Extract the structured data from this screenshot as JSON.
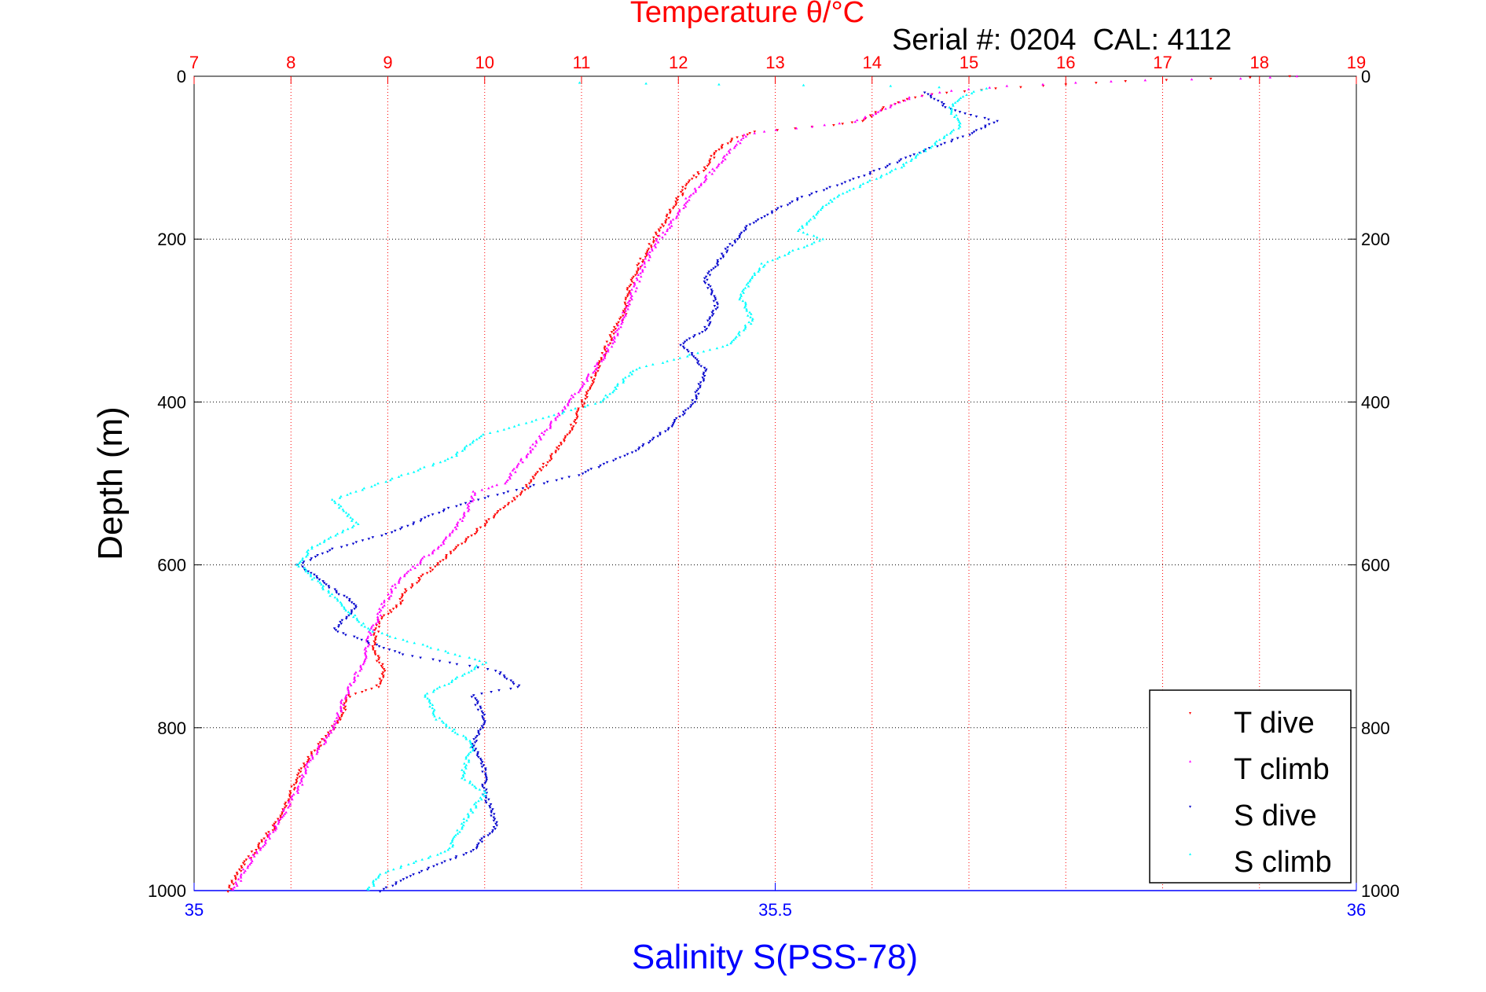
{
  "chart_data": {
    "type": "scatter",
    "title": "Temperature θ/°C",
    "annotation": "Serial #: 0204  CAL: 4112",
    "xlabel": "Salinity S(PSS-78)",
    "ylabel": "Depth (m)",
    "temperature_axis": {
      "range": [
        7,
        19
      ],
      "ticks": [
        "7",
        "8",
        "9",
        "10",
        "11",
        "12",
        "13",
        "14",
        "15",
        "16",
        "17",
        "18",
        "19"
      ],
      "position": "top",
      "color": "#ff0000"
    },
    "salinity_axis": {
      "range": [
        35,
        36
      ],
      "ticks": [
        "35",
        "35.5",
        "36"
      ],
      "position": "bottom",
      "color": "#0000ff"
    },
    "depth_axis": {
      "range": [
        0,
        1000
      ],
      "ticks": [
        "0",
        "200",
        "400",
        "600",
        "800",
        "1000"
      ],
      "reversed": true
    },
    "grid": true,
    "legend_position": "bottom-right",
    "series": [
      {
        "name": "T dive",
        "axis": "temperature",
        "color": "#ff0000",
        "marker": "triangle-down",
        "points": [
          [
            18.3,
            0
          ],
          [
            17.5,
            3
          ],
          [
            16.6,
            6
          ],
          [
            16.0,
            10
          ],
          [
            15.3,
            15
          ],
          [
            14.6,
            22
          ],
          [
            14.3,
            30
          ],
          [
            14.1,
            40
          ],
          [
            14.0,
            48
          ],
          [
            13.9,
            55
          ],
          [
            13.6,
            60
          ],
          [
            13.2,
            64
          ],
          [
            12.8,
            68
          ],
          [
            12.6,
            75
          ],
          [
            12.4,
            90
          ],
          [
            12.3,
            110
          ],
          [
            12.1,
            130
          ],
          [
            12.0,
            150
          ],
          [
            11.9,
            170
          ],
          [
            11.75,
            200
          ],
          [
            11.6,
            230
          ],
          [
            11.5,
            260
          ],
          [
            11.45,
            290
          ],
          [
            11.3,
            320
          ],
          [
            11.2,
            350
          ],
          [
            11.05,
            390
          ],
          [
            10.95,
            420
          ],
          [
            10.8,
            450
          ],
          [
            10.6,
            480
          ],
          [
            10.4,
            510
          ],
          [
            10.1,
            540
          ],
          [
            9.8,
            570
          ],
          [
            9.6,
            590
          ],
          [
            9.4,
            610
          ],
          [
            9.2,
            630
          ],
          [
            9.1,
            650
          ],
          [
            8.9,
            670
          ],
          [
            8.85,
            700
          ],
          [
            8.95,
            730
          ],
          [
            8.9,
            750
          ],
          [
            8.6,
            760
          ],
          [
            8.5,
            790
          ],
          [
            8.3,
            820
          ],
          [
            8.1,
            850
          ],
          [
            8.0,
            880
          ],
          [
            7.9,
            910
          ],
          [
            7.7,
            940
          ],
          [
            7.5,
            970
          ],
          [
            7.35,
            1000
          ]
        ]
      },
      {
        "name": "T climb",
        "axis": "temperature",
        "color": "#ff00ff",
        "marker": "triangle-up",
        "points": [
          [
            18.4,
            0
          ],
          [
            17.8,
            3
          ],
          [
            16.8,
            5
          ],
          [
            16.1,
            8
          ],
          [
            15.4,
            12
          ],
          [
            14.8,
            18
          ],
          [
            14.4,
            26
          ],
          [
            14.2,
            36
          ],
          [
            14.05,
            46
          ],
          [
            13.8,
            56
          ],
          [
            13.4,
            62
          ],
          [
            13.0,
            66
          ],
          [
            12.7,
            72
          ],
          [
            12.55,
            90
          ],
          [
            12.4,
            110
          ],
          [
            12.25,
            130
          ],
          [
            12.1,
            150
          ],
          [
            12.0,
            170
          ],
          [
            11.8,
            200
          ],
          [
            11.65,
            230
          ],
          [
            11.55,
            260
          ],
          [
            11.45,
            290
          ],
          [
            11.35,
            320
          ],
          [
            11.2,
            350
          ],
          [
            11.0,
            380
          ],
          [
            10.8,
            410
          ],
          [
            10.6,
            440
          ],
          [
            10.4,
            470
          ],
          [
            10.2,
            500
          ],
          [
            9.9,
            510
          ],
          [
            9.8,
            540
          ],
          [
            9.6,
            570
          ],
          [
            9.3,
            600
          ],
          [
            9.1,
            620
          ],
          [
            8.95,
            650
          ],
          [
            8.8,
            690
          ],
          [
            8.75,
            720
          ],
          [
            8.6,
            750
          ],
          [
            8.5,
            780
          ],
          [
            8.45,
            800
          ],
          [
            8.2,
            840
          ],
          [
            8.1,
            870
          ],
          [
            7.95,
            900
          ],
          [
            7.8,
            930
          ],
          [
            7.6,
            960
          ],
          [
            7.4,
            1000
          ]
        ]
      },
      {
        "name": "S dive",
        "axis": "salinity",
        "color": "#0000cc",
        "marker": "triangle-down",
        "points": [
          [
            35.63,
            20
          ],
          [
            35.65,
            40
          ],
          [
            35.69,
            55
          ],
          [
            35.67,
            70
          ],
          [
            35.63,
            90
          ],
          [
            35.58,
            120
          ],
          [
            35.52,
            150
          ],
          [
            35.48,
            180
          ],
          [
            35.46,
            210
          ],
          [
            35.44,
            250
          ],
          [
            35.45,
            280
          ],
          [
            35.44,
            310
          ],
          [
            35.42,
            330
          ],
          [
            35.44,
            360
          ],
          [
            35.43,
            400
          ],
          [
            35.41,
            430
          ],
          [
            35.38,
            460
          ],
          [
            35.33,
            490
          ],
          [
            35.27,
            510
          ],
          [
            35.22,
            530
          ],
          [
            35.17,
            560
          ],
          [
            35.12,
            580
          ],
          [
            35.09,
            600
          ],
          [
            35.11,
            620
          ],
          [
            35.14,
            650
          ],
          [
            35.12,
            680
          ],
          [
            35.18,
            710
          ],
          [
            35.26,
            730
          ],
          [
            35.28,
            750
          ],
          [
            35.24,
            760
          ],
          [
            35.25,
            790
          ],
          [
            35.24,
            820
          ],
          [
            35.25,
            850
          ],
          [
            35.25,
            880
          ],
          [
            35.26,
            920
          ],
          [
            35.24,
            950
          ],
          [
            35.19,
            980
          ],
          [
            35.16,
            1000
          ]
        ]
      },
      {
        "name": "S climb",
        "axis": "salinity",
        "color": "#00ffff",
        "marker": "triangle-up",
        "points": [
          [
            35.33,
            8
          ],
          [
            35.45,
            10
          ],
          [
            35.6,
            12
          ],
          [
            35.68,
            15
          ],
          [
            35.66,
            25
          ],
          [
            35.65,
            40
          ],
          [
            35.66,
            60
          ],
          [
            35.64,
            80
          ],
          [
            35.61,
            110
          ],
          [
            35.55,
            150
          ],
          [
            35.52,
            190
          ],
          [
            35.54,
            200
          ],
          [
            35.49,
            230
          ],
          [
            35.47,
            270
          ],
          [
            35.48,
            300
          ],
          [
            35.46,
            330
          ],
          [
            35.38,
            360
          ],
          [
            35.35,
            400
          ],
          [
            35.3,
            420
          ],
          [
            35.25,
            440
          ],
          [
            35.22,
            470
          ],
          [
            35.16,
            500
          ],
          [
            35.12,
            520
          ],
          [
            35.14,
            550
          ],
          [
            35.1,
            580
          ],
          [
            35.09,
            600
          ],
          [
            35.12,
            640
          ],
          [
            35.15,
            680
          ],
          [
            35.2,
            700
          ],
          [
            35.25,
            720
          ],
          [
            35.2,
            760
          ],
          [
            35.21,
            790
          ],
          [
            35.24,
            820
          ],
          [
            35.23,
            860
          ],
          [
            35.25,
            880
          ],
          [
            35.23,
            920
          ],
          [
            35.22,
            950
          ],
          [
            35.16,
            980
          ],
          [
            35.15,
            1000
          ]
        ]
      }
    ]
  }
}
